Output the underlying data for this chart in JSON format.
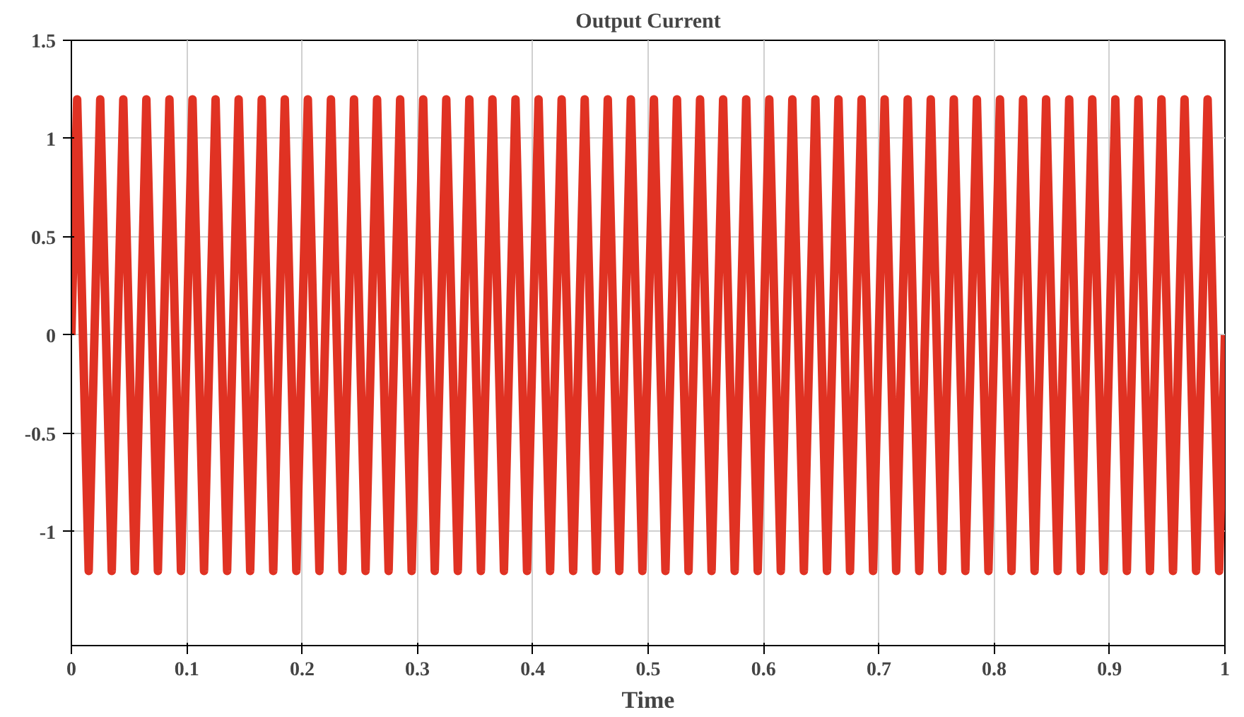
{
  "chart_data": {
    "type": "line",
    "title": "Output Current",
    "xlabel": "Time",
    "xlim": [
      0,
      1
    ],
    "xticks": [
      0,
      0.1,
      0.2,
      0.3,
      0.4,
      0.5,
      0.6,
      0.7,
      0.8,
      0.9,
      1
    ],
    "ylim": [
      -1.58,
      1.5
    ],
    "yticks": [
      -1,
      -0.5,
      0,
      0.5,
      1,
      1.5
    ],
    "grid": true,
    "line_style": "solid",
    "x": [
      0,
      0.005,
      0.015,
      0.025,
      0.035,
      0.045,
      0.055,
      0.065,
      0.075,
      0.085,
      0.095,
      0.105,
      0.115,
      0.125,
      0.135,
      0.145,
      0.155,
      0.165,
      0.175,
      0.185,
      0.195,
      0.205,
      0.215,
      0.225,
      0.235,
      0.245,
      0.255,
      0.265,
      0.275,
      0.285,
      0.295,
      0.305,
      0.315,
      0.325,
      0.335,
      0.345,
      0.355,
      0.365,
      0.375,
      0.385,
      0.395,
      0.405,
      0.415,
      0.425,
      0.435,
      0.445,
      0.455,
      0.465,
      0.475,
      0.485,
      0.495,
      0.505,
      0.515,
      0.525,
      0.535,
      0.545,
      0.555,
      0.565,
      0.575,
      0.585,
      0.595,
      0.605,
      0.615,
      0.625,
      0.635,
      0.645,
      0.655,
      0.665,
      0.675,
      0.685,
      0.695,
      0.705,
      0.715,
      0.725,
      0.735,
      0.745,
      0.755,
      0.765,
      0.775,
      0.785,
      0.795,
      0.805,
      0.815,
      0.825,
      0.835,
      0.845,
      0.855,
      0.865,
      0.875,
      0.885,
      0.895,
      0.905,
      0.915,
      0.925,
      0.935,
      0.945,
      0.955,
      0.965,
      0.975,
      0.985,
      0.995,
      1
    ],
    "series": [
      {
        "color": "#e03223",
        "values": [
          0,
          1.2,
          -1.2,
          1.2,
          -1.2,
          1.2,
          -1.2,
          1.2,
          -1.2,
          1.2,
          -1.2,
          1.2,
          -1.2,
          1.2,
          -1.2,
          1.2,
          -1.2,
          1.2,
          -1.2,
          1.2,
          -1.2,
          1.2,
          -1.2,
          1.2,
          -1.2,
          1.2,
          -1.2,
          1.2,
          -1.2,
          1.2,
          -1.2,
          1.2,
          -1.2,
          1.2,
          -1.2,
          1.2,
          -1.2,
          1.2,
          -1.2,
          1.2,
          -1.2,
          1.2,
          -1.2,
          1.2,
          -1.2,
          1.2,
          -1.2,
          1.2,
          -1.2,
          1.2,
          -1.2,
          1.2,
          -1.2,
          1.2,
          -1.2,
          1.2,
          -1.2,
          1.2,
          -1.2,
          1.2,
          -1.2,
          1.2,
          -1.2,
          1.2,
          -1.2,
          1.2,
          -1.2,
          1.2,
          -1.2,
          1.2,
          -1.2,
          1.2,
          -1.2,
          1.2,
          -1.2,
          1.2,
          -1.2,
          1.2,
          -1.2,
          1.2,
          -1.2,
          1.2,
          -1.2,
          1.2,
          -1.2,
          1.2,
          -1.2,
          1.2,
          -1.2,
          1.2,
          -1.2,
          1.2,
          -1.2,
          1.2,
          -1.2,
          1.2,
          -1.2,
          1.2,
          -1.2,
          1.2,
          -1.2,
          0
        ]
      }
    ]
  }
}
